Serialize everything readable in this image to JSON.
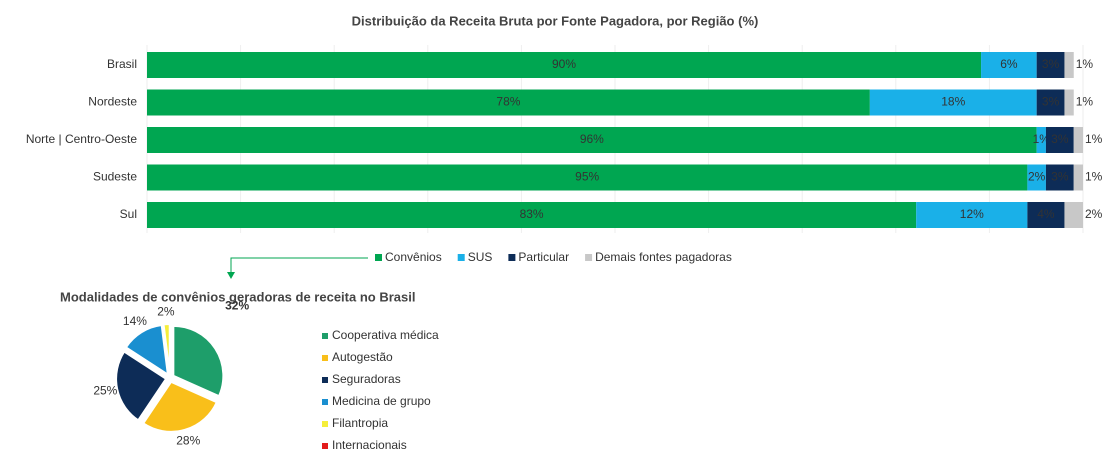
{
  "chart_data": [
    {
      "type": "stacked-bar-horizontal",
      "title": "Distribuição da Receita Bruta por Fonte Pagadora, por Região  (%)",
      "categories": [
        "Brasil",
        "Nordeste",
        "Norte  | Centro-Oeste",
        "Sudeste",
        "Sul"
      ],
      "series": [
        {
          "name": "Convênios",
          "color": "#00a651",
          "values": [
            90,
            78,
            96,
            95,
            83
          ],
          "value_labels": [
            "90%",
            "78%",
            "96%",
            "95%",
            "83%"
          ]
        },
        {
          "name": "SUS",
          "color": "#1ab0e8",
          "values": [
            6,
            18,
            1,
            2,
            12
          ],
          "value_labels": [
            "6%",
            "18%",
            "1%",
            "2%",
            "12%"
          ]
        },
        {
          "name": "Particular",
          "color": "#0d2c57",
          "values": [
            3,
            3,
            3,
            3,
            4
          ],
          "value_labels": [
            "3%",
            "3%",
            "3%",
            "3%",
            "4%"
          ]
        },
        {
          "name": "Demais fontes pagadoras",
          "color": "#c8c8c8",
          "values": [
            1,
            1,
            1,
            1,
            2
          ],
          "value_labels": [
            "1%",
            "1%",
            "1%",
            "1%",
            "2%"
          ]
        }
      ],
      "legend": "bottom"
    },
    {
      "type": "pie",
      "title": "Modalidades de convênios geradoras de receita no Brasil",
      "categories": [
        "Cooperativa médica",
        "Autogestão",
        "Seguradoras",
        "Medicina de grupo",
        "Filantropia",
        "Internacionais"
      ],
      "values": [
        32,
        28,
        25,
        14,
        2,
        0
      ],
      "value_labels": [
        "32%",
        "28%",
        "25%",
        "14%",
        "2%",
        null
      ],
      "colors": [
        "#1e9e6a",
        "#f9bf1a",
        "#0d2c57",
        "#1a8fd0",
        "#f5ee3a",
        "#e31b1b"
      ],
      "legend": "right"
    }
  ]
}
